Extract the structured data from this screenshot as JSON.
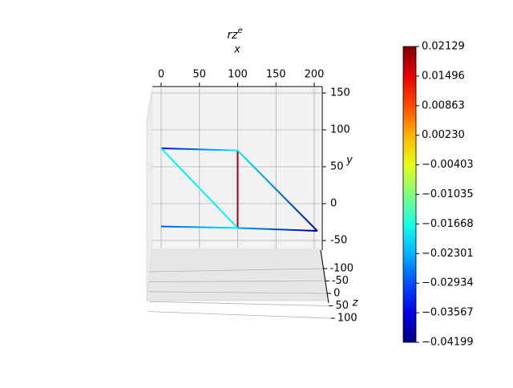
{
  "chart_data": {
    "type": "line3d",
    "title": "rz",
    "title_superscript": "e",
    "xlabel": "x",
    "ylabel": "y",
    "zlabel": "z",
    "xlim": [
      0,
      200
    ],
    "xticks": [
      0,
      50,
      100,
      150,
      200
    ],
    "ylim": [
      -50,
      150
    ],
    "yticks": [
      -50,
      0,
      50,
      100,
      150
    ],
    "zlim": [
      -100,
      100
    ],
    "zticks": [
      -100,
      -50,
      0,
      50,
      100
    ],
    "grid": true,
    "colormap": "jet",
    "clim": [
      -0.04199,
      0.02129
    ],
    "cticks": [
      {
        "value": 0.02129,
        "label": "0.02129"
      },
      {
        "value": 0.01496,
        "label": "0.01496"
      },
      {
        "value": 0.00863,
        "label": "0.00863"
      },
      {
        "value": 0.0023,
        "label": "0.00230"
      },
      {
        "value": -0.00403,
        "label": "−0.00403"
      },
      {
        "value": -0.01035,
        "label": "−0.01035"
      },
      {
        "value": -0.01668,
        "label": "−0.01668"
      },
      {
        "value": -0.02301,
        "label": "−0.02301"
      },
      {
        "value": -0.02934,
        "label": "−0.02934"
      },
      {
        "value": -0.03567,
        "label": "−0.03567"
      },
      {
        "value": -0.04199,
        "label": "−0.04199"
      }
    ],
    "elements": [
      {
        "x": [
          0,
          100
        ],
        "y": [
          75,
          72
        ],
        "values": [
          -0.036,
          -0.019
        ]
      },
      {
        "x": [
          100,
          100
        ],
        "y": [
          72,
          -33
        ],
        "values": [
          0.019,
          0.019
        ]
      },
      {
        "x": [
          0,
          100
        ],
        "y": [
          75,
          -33
        ],
        "values": [
          -0.019,
          -0.019
        ]
      },
      {
        "x": [
          0,
          100
        ],
        "y": [
          -31,
          -33
        ],
        "values": [
          -0.029,
          -0.019
        ]
      },
      {
        "x": [
          100,
          204
        ],
        "y": [
          72,
          -37
        ],
        "values": [
          -0.019,
          -0.039
        ]
      },
      {
        "x": [
          100,
          204
        ],
        "y": [
          -33,
          -37
        ],
        "values": [
          -0.024,
          -0.041
        ]
      }
    ]
  }
}
